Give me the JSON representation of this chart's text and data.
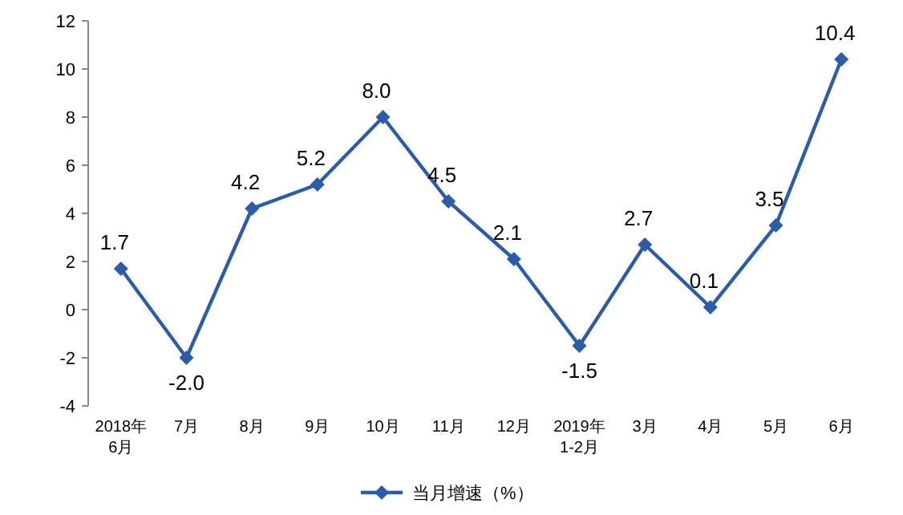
{
  "chart_data": {
    "type": "line",
    "categories": [
      "2018年\n6月",
      "7月",
      "8月",
      "9月",
      "10月",
      "11月",
      "12月",
      "2019年\n1-2月",
      "3月",
      "4月",
      "5月",
      "6月"
    ],
    "series": [
      {
        "name": "当月增速（%）",
        "color": "#2a5caa",
        "values": [
          1.7,
          -2.0,
          4.2,
          5.2,
          8.0,
          4.5,
          2.1,
          -1.5,
          2.7,
          0.1,
          3.5,
          10.4
        ],
        "value_labels": [
          "1.7",
          "-2.0",
          "4.2",
          "5.2",
          "8.0",
          "4.5",
          "2.1",
          "-1.5",
          "2.7",
          "0.1",
          "3.5",
          "10.4"
        ]
      }
    ],
    "ylim": [
      -4,
      12
    ],
    "yticks": [
      -4,
      -2,
      0,
      2,
      4,
      6,
      8,
      10,
      12
    ],
    "marker": "diamond",
    "line_style": "solid",
    "legend": "bottom",
    "grid": false
  }
}
